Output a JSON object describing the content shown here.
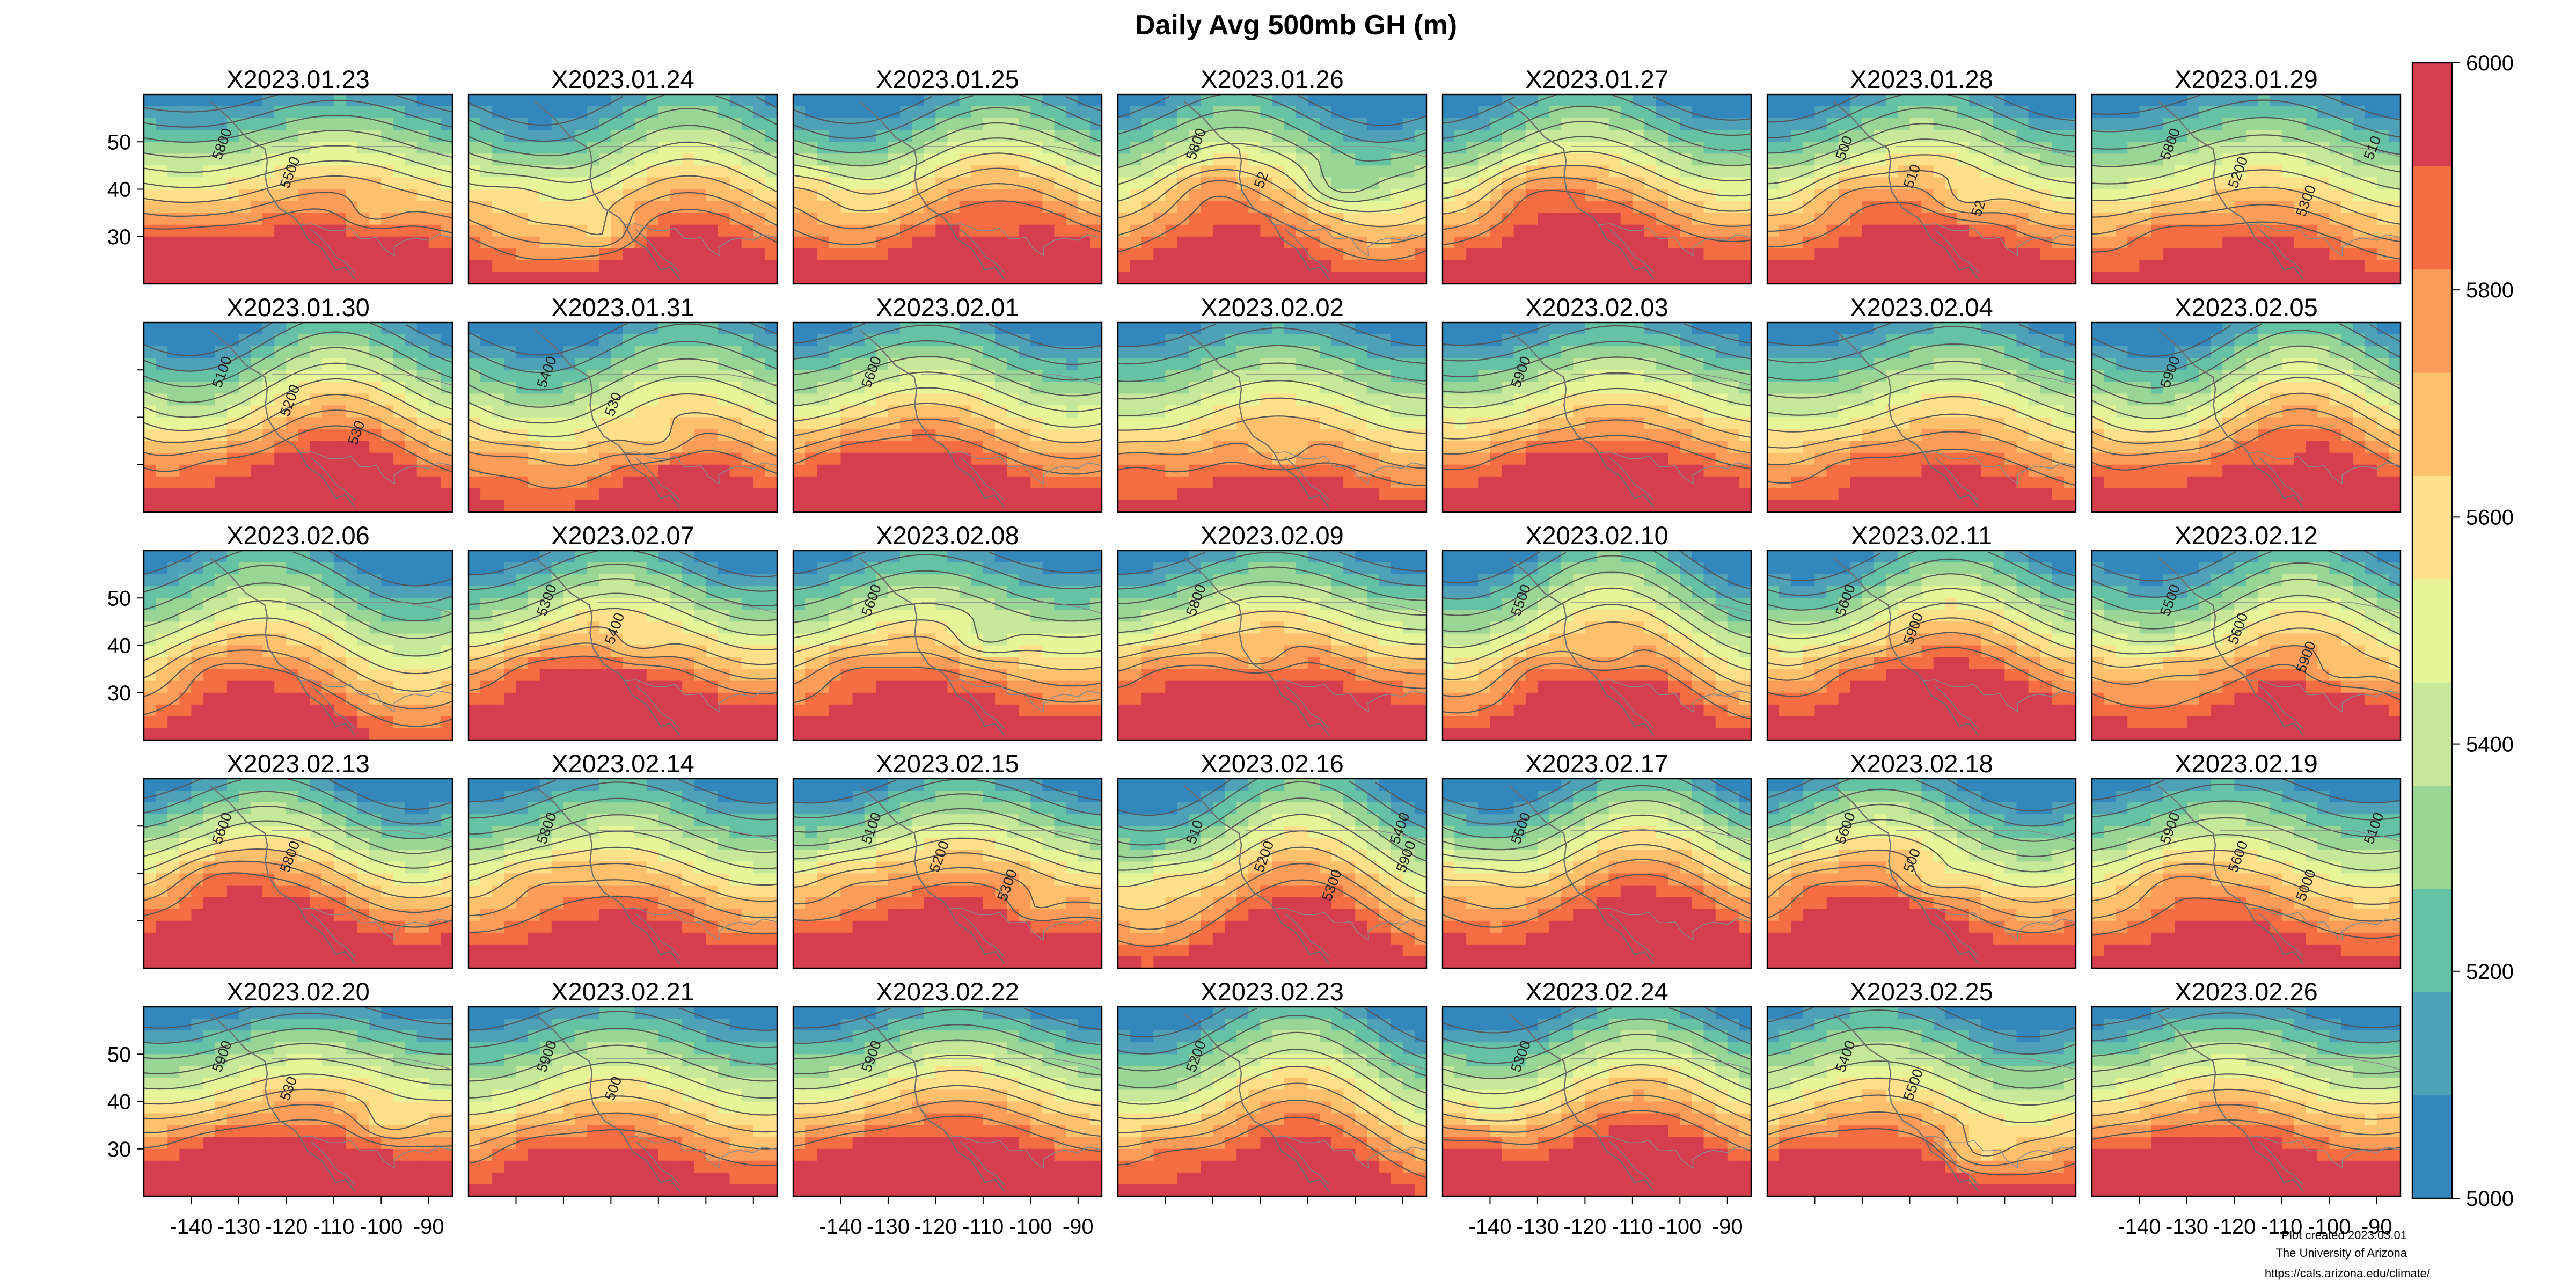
{
  "figure": {
    "title": "Daily Avg 500mb GH (m)",
    "credit_lines": [
      "Plot created 2023.03.01",
      "The University of Arizona",
      "https://cals.arizona.edu/climate/"
    ]
  },
  "panels": [
    "X2023.01.23",
    "X2023.01.24",
    "X2023.01.25",
    "X2023.01.26",
    "X2023.01.27",
    "X2023.01.28",
    "X2023.01.29",
    "X2023.01.30",
    "X2023.01.31",
    "X2023.02.01",
    "X2023.02.02",
    "X2023.02.03",
    "X2023.02.04",
    "X2023.02.05",
    "X2023.02.06",
    "X2023.02.07",
    "X2023.02.08",
    "X2023.02.09",
    "X2023.02.10",
    "X2023.02.11",
    "X2023.02.12",
    "X2023.02.13",
    "X2023.02.14",
    "X2023.02.15",
    "X2023.02.16",
    "X2023.02.17",
    "X2023.02.18",
    "X2023.02.19",
    "X2023.02.20",
    "X2023.02.21",
    "X2023.02.22",
    "X2023.02.23",
    "X2023.02.24",
    "X2023.02.25",
    "X2023.02.26"
  ],
  "grid": {
    "rows": 5,
    "cols": 7
  },
  "axes": {
    "x_ticks": [
      -140,
      -130,
      -120,
      -110,
      -100,
      -90
    ],
    "x_tick_labels": [
      "-140",
      "-130",
      "-120",
      "-110",
      "-100",
      "-90"
    ],
    "x_range": [
      -150,
      -85
    ],
    "y_ticks": [
      30,
      40,
      50
    ],
    "y_tick_labels": [
      "30",
      "40",
      "50"
    ],
    "y_range": [
      20,
      60
    ]
  },
  "colorbar": {
    "min": 5000,
    "max": 6000,
    "step": 100,
    "tick_values": [
      5000,
      5200,
      5400,
      5600,
      5800,
      6000
    ],
    "tick_labels": [
      "5000",
      "5200",
      "5400",
      "5600",
      "5800",
      "6000"
    ],
    "colors": [
      "#3288bd",
      "#4fa1b8",
      "#66c2a5",
      "#99d594",
      "#c7e89a",
      "#e6f598",
      "#fee08b",
      "#fdc16d",
      "#fc9c5a",
      "#f46d43",
      "#d53e4f"
    ]
  },
  "contour_labels": [
    {
      "panel": "X2023.01.23",
      "labels": [
        "5800",
        "5500"
      ]
    },
    {
      "panel": "X2023.01.26",
      "labels": [
        "5800",
        "52"
      ]
    },
    {
      "panel": "X2023.01.28",
      "labels": [
        "500",
        "510",
        "52"
      ]
    },
    {
      "panel": "X2023.01.29",
      "labels": [
        "5800",
        "5200",
        "5300",
        "510"
      ]
    },
    {
      "panel": "X2023.01.30",
      "labels": [
        "5100",
        "5200",
        "530"
      ]
    },
    {
      "panel": "X2023.01.31",
      "labels": [
        "5400",
        "530"
      ]
    },
    {
      "panel": "X2023.02.01",
      "labels": [
        "5600"
      ]
    },
    {
      "panel": "X2023.02.03",
      "labels": [
        "5900"
      ]
    },
    {
      "panel": "X2023.02.05",
      "labels": [
        "5900"
      ]
    },
    {
      "panel": "X2023.02.07",
      "labels": [
        "5300",
        "5400"
      ]
    },
    {
      "panel": "X2023.02.08",
      "labels": [
        "5600"
      ]
    },
    {
      "panel": "X2023.02.09",
      "labels": [
        "5800"
      ]
    },
    {
      "panel": "X2023.02.10",
      "labels": [
        "5500"
      ]
    },
    {
      "panel": "X2023.02.11",
      "labels": [
        "5600",
        "5900"
      ]
    },
    {
      "panel": "X2023.02.12",
      "labels": [
        "5500",
        "5600",
        "5900"
      ]
    },
    {
      "panel": "X2023.02.13",
      "labels": [
        "5600",
        "5800"
      ]
    },
    {
      "panel": "X2023.02.14",
      "labels": [
        "5800"
      ]
    },
    {
      "panel": "X2023.02.15",
      "labels": [
        "5100",
        "5200",
        "5300"
      ]
    },
    {
      "panel": "X2023.02.16",
      "labels": [
        "510",
        "5200",
        "5300",
        "5400",
        "5900"
      ]
    },
    {
      "panel": "X2023.02.17",
      "labels": [
        "5500"
      ]
    },
    {
      "panel": "X2023.02.18",
      "labels": [
        "5600",
        "500"
      ]
    },
    {
      "panel": "X2023.02.19",
      "labels": [
        "5900",
        "5600",
        "5000",
        "5100"
      ]
    },
    {
      "panel": "X2023.02.20",
      "labels": [
        "5900",
        "530"
      ]
    },
    {
      "panel": "X2023.02.21",
      "labels": [
        "5900",
        "500"
      ]
    },
    {
      "panel": "X2023.02.22",
      "labels": [
        "5900"
      ]
    },
    {
      "panel": "X2023.02.23",
      "labels": [
        "5200"
      ]
    },
    {
      "panel": "X2023.02.24",
      "labels": [
        "5300"
      ]
    },
    {
      "panel": "X2023.02.25",
      "labels": [
        "5400",
        "5500"
      ]
    }
  ]
}
